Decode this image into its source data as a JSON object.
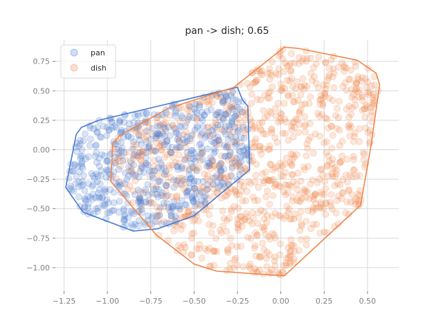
{
  "chart_data": {
    "type": "scatter",
    "title": "pan -> dish; 0.65",
    "xlabel": "",
    "ylabel": "",
    "xlim": [
      -1.3,
      0.68
    ],
    "ylim": [
      -1.2,
      0.93
    ],
    "xticks": [
      -1.25,
      -1.0,
      -0.75,
      -0.5,
      -0.25,
      0.0,
      0.25,
      0.5
    ],
    "xtick_labels": [
      "−1.25",
      "−1.00",
      "−0.75",
      "−0.50",
      "−0.25",
      "0.00",
      "0.25",
      "0.50"
    ],
    "yticks": [
      -1.0,
      -0.75,
      -0.5,
      -0.25,
      0.0,
      0.25,
      0.5,
      0.75
    ],
    "ytick_labels": [
      "−1.00",
      "−0.75",
      "−0.50",
      "−0.25",
      "0.00",
      "0.25",
      "0.50",
      "0.75"
    ],
    "grid": true,
    "legend_position": "top-left",
    "series": [
      {
        "name": "pan",
        "color": "#4878cf",
        "point_count": 600,
        "hull": [
          [
            -1.22,
            -0.17
          ],
          [
            -1.18,
            0.13
          ],
          [
            -1.15,
            0.19
          ],
          [
            -1.05,
            0.25
          ],
          [
            -0.25,
            0.53
          ],
          [
            -0.22,
            0.42
          ],
          [
            -0.19,
            0.37
          ],
          [
            -0.18,
            -0.17
          ],
          [
            -0.5,
            -0.56
          ],
          [
            -0.71,
            -0.67
          ],
          [
            -0.85,
            -0.69
          ],
          [
            -1.14,
            -0.53
          ],
          [
            -1.24,
            -0.32
          ]
        ]
      },
      {
        "name": "dish",
        "color": "#ee854a",
        "point_count": 1000,
        "hull": [
          [
            -0.97,
            0.05
          ],
          [
            -0.93,
            0.12
          ],
          [
            -0.65,
            0.35
          ],
          [
            -0.27,
            0.53
          ],
          [
            0.02,
            0.87
          ],
          [
            0.1,
            0.86
          ],
          [
            0.44,
            0.76
          ],
          [
            0.55,
            0.65
          ],
          [
            0.57,
            0.55
          ],
          [
            0.52,
            0.03
          ],
          [
            0.46,
            -0.47
          ],
          [
            0.02,
            -1.07
          ],
          [
            -0.37,
            -1.03
          ],
          [
            -0.5,
            -0.97
          ],
          [
            -0.72,
            -0.72
          ],
          [
            -0.98,
            -0.27
          ],
          [
            -0.97,
            0.05
          ]
        ]
      }
    ]
  }
}
